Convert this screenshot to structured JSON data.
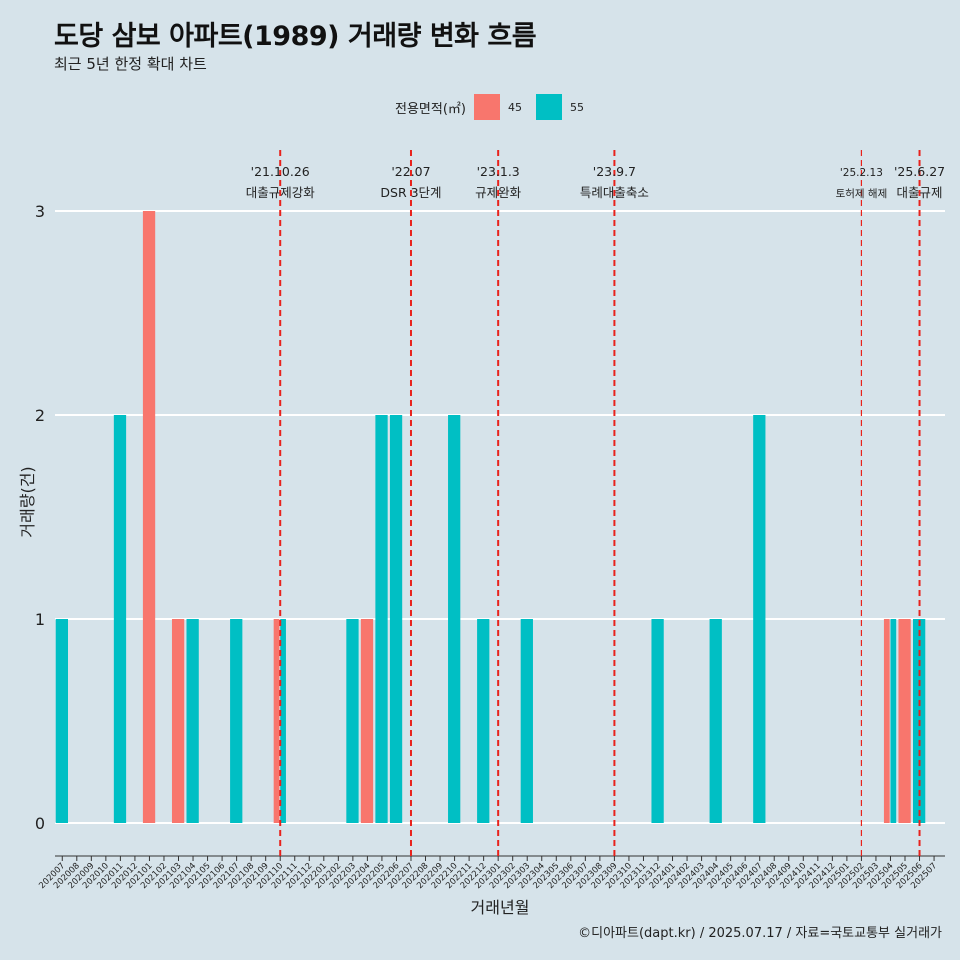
{
  "title": "도당 삼보 아파트(1989) 거래량 변화 흐름",
  "subtitle": "최근 5년 한정 확대 차트",
  "legend": {
    "title": "전용면적(㎡)",
    "items": [
      {
        "label": "45",
        "color": "#f8766d"
      },
      {
        "label": "55",
        "color": "#00bfc4"
      }
    ]
  },
  "caption": "©디아파트(dapt.kr) / 2025.07.17 / 자료=국토교통부 실거래가",
  "chart_data": {
    "type": "bar",
    "xlabel": "거래년월",
    "ylabel": "거래량(건)",
    "ylim": [
      0,
      3
    ],
    "yticks": [
      0,
      1,
      2,
      3
    ],
    "grid": true,
    "legend_position": "top",
    "categories": [
      "202007",
      "202008",
      "202009",
      "202010",
      "202011",
      "202012",
      "202101",
      "202102",
      "202103",
      "202104",
      "202105",
      "202106",
      "202107",
      "202108",
      "202109",
      "202110",
      "202111",
      "202112",
      "202201",
      "202202",
      "202203",
      "202204",
      "202205",
      "202206",
      "202207",
      "202208",
      "202209",
      "202210",
      "202211",
      "202212",
      "202301",
      "202302",
      "202303",
      "202304",
      "202305",
      "202306",
      "202307",
      "202308",
      "202309",
      "202310",
      "202311",
      "202312",
      "202401",
      "202402",
      "202403",
      "202404",
      "202405",
      "202406",
      "202407",
      "202408",
      "202409",
      "202410",
      "202411",
      "202412",
      "202501",
      "202502",
      "202503",
      "202504",
      "202505",
      "202506",
      "202507"
    ],
    "series": [
      {
        "name": "45",
        "color": "#f8766d",
        "values": [
          0,
          0,
          0,
          0,
          0,
          0,
          3,
          0,
          1,
          0,
          0,
          0,
          0,
          0,
          0,
          1,
          0,
          0,
          0,
          0,
          0,
          1,
          0,
          0,
          0,
          0,
          0,
          0,
          0,
          0,
          0,
          0,
          0,
          0,
          0,
          0,
          0,
          0,
          0,
          0,
          0,
          0,
          0,
          0,
          0,
          0,
          0,
          0,
          0,
          0,
          0,
          0,
          0,
          0,
          0,
          0,
          0,
          1,
          1,
          0,
          0
        ]
      },
      {
        "name": "55",
        "color": "#00bfc4",
        "values": [
          1,
          0,
          0,
          0,
          2,
          0,
          0,
          0,
          0,
          1,
          0,
          0,
          1,
          0,
          0,
          1,
          0,
          0,
          0,
          0,
          1,
          0,
          2,
          2,
          0,
          0,
          0,
          2,
          0,
          1,
          0,
          0,
          1,
          0,
          0,
          0,
          0,
          0,
          0,
          0,
          0,
          1,
          0,
          0,
          0,
          1,
          0,
          0,
          2,
          0,
          0,
          0,
          0,
          0,
          0,
          0,
          0,
          1,
          0,
          1,
          0
        ]
      }
    ],
    "events": [
      {
        "date": "'21.10.26",
        "label": "대출규제강화",
        "category": "202110"
      },
      {
        "date": "'22.07",
        "label": "DSR 3단계",
        "category": "202207"
      },
      {
        "date": "'23.1.3",
        "label": "규제완화",
        "category": "202301"
      },
      {
        "date": "'23.9.7",
        "label": "특례대출축소",
        "category": "202309"
      },
      {
        "date": "'25.2.13",
        "label": "토허제 해제",
        "category": "202502"
      },
      {
        "date": "'25.6.27",
        "label": "대출규제",
        "category": "202506"
      }
    ]
  }
}
